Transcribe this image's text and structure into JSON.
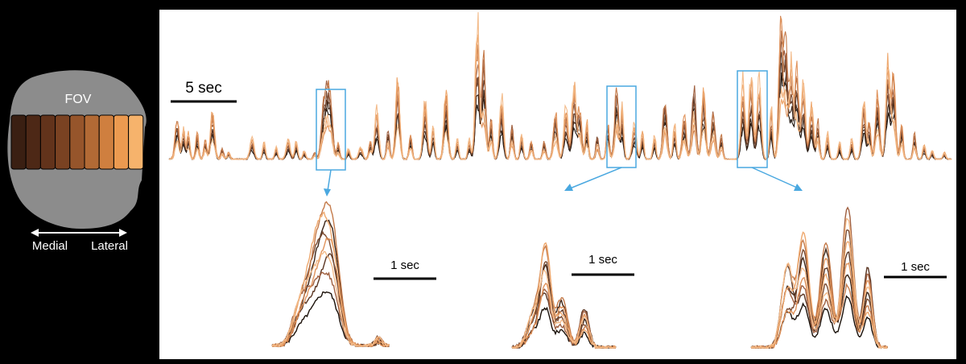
{
  "fov": {
    "label": "FOV",
    "axis_left": "Medial",
    "axis_right": "Lateral",
    "strip_colors": [
      "#3a1f12",
      "#4d2816",
      "#62331b",
      "#7a4222",
      "#96552b",
      "#b26a35",
      "#cf7f3f",
      "#ec9a50",
      "#f6b36c"
    ],
    "tissue_color": "#8c8c8c"
  },
  "traces": {
    "scale_main": "5 sec",
    "scale_zoom_1": "1 sec",
    "scale_zoom_2": "1 sec",
    "scale_zoom_3": "1 sec",
    "highlight_color": "#4aa8e0",
    "trace_colors": [
      "#1a1009",
      "#3b2416",
      "#5a3522",
      "#7a4a30",
      "#a06040",
      "#c47a4a",
      "#e0935c",
      "#eea86e",
      "#f3bb8a"
    ]
  }
}
